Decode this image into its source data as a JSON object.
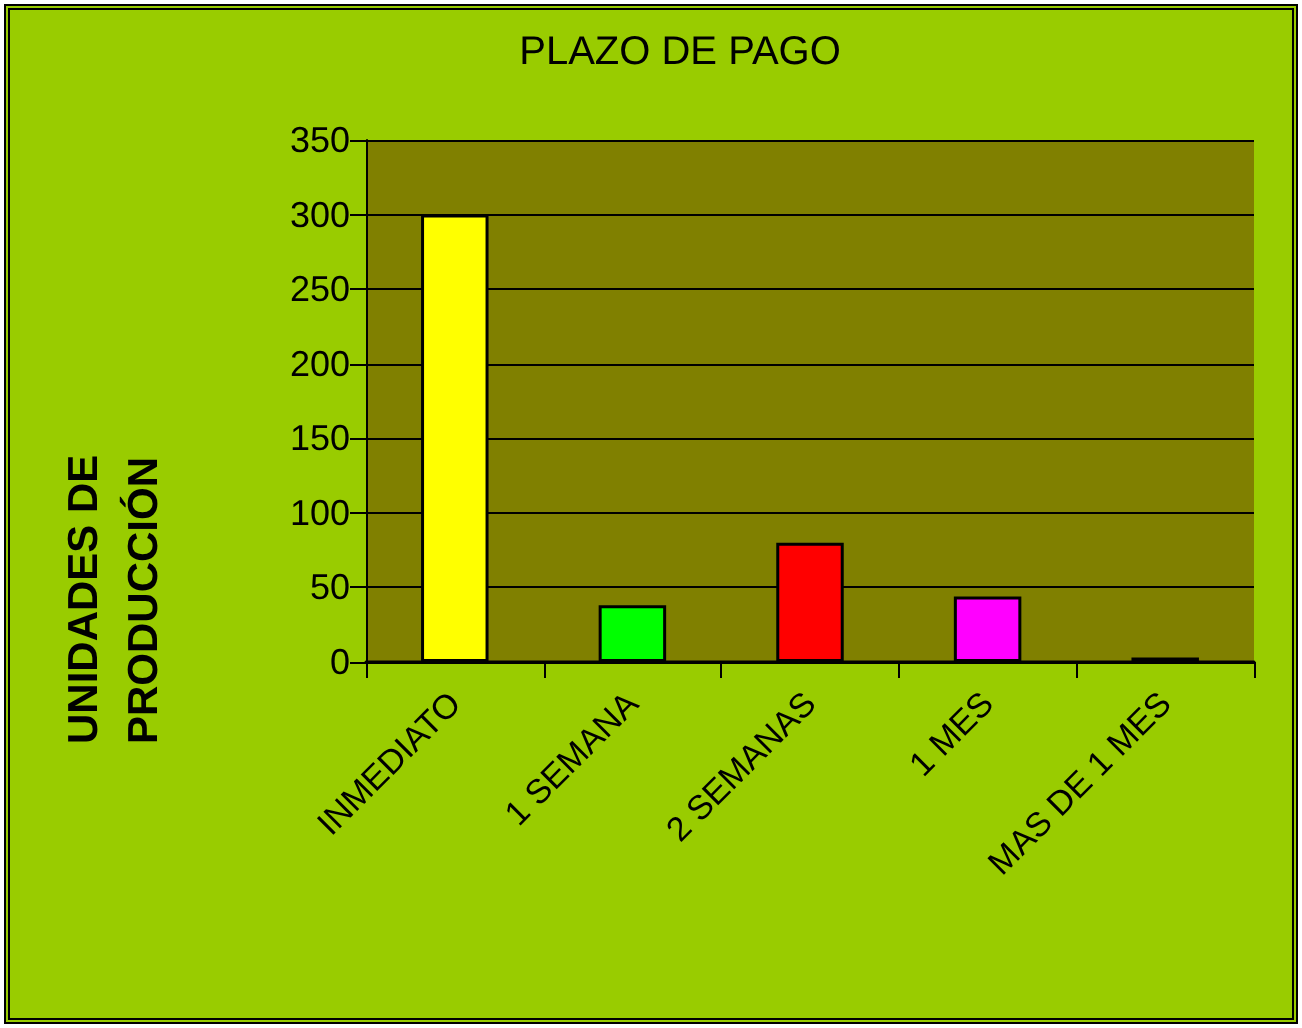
{
  "chart_data": {
    "type": "bar",
    "title": "PLAZO DE PAGO",
    "ylabel": "UNIDADES DE PRODUCCIÓN",
    "categories": [
      "INMEDIATO",
      "1 SEMANA",
      "2 SEMANAS",
      "1 MES",
      "MAS DE 1 MES"
    ],
    "values": [
      300,
      38,
      80,
      44,
      3
    ],
    "colors": [
      "#ffff00",
      "#00ff00",
      "#ff0000",
      "#ff00ff",
      "#000000"
    ],
    "ylim": [
      0,
      350
    ],
    "yticks": [
      0,
      50,
      100,
      150,
      200,
      250,
      300,
      350
    ],
    "grid": "y"
  }
}
